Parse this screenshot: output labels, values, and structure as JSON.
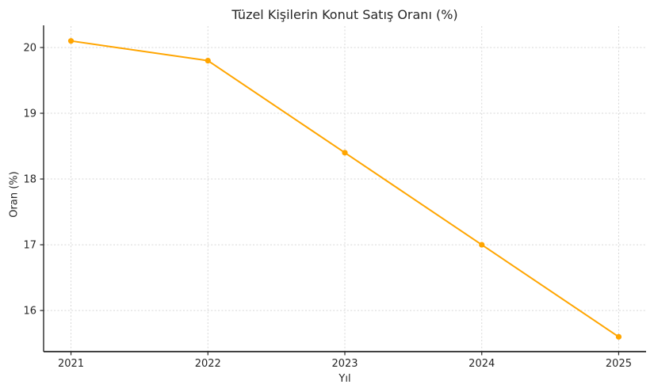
{
  "chart_data": {
    "type": "line",
    "title": "Tüzel Kişilerin Konut Satış Oranı (%)",
    "xlabel": "Yıl",
    "ylabel": "Oran (%)",
    "x": [
      2021,
      2022,
      2023,
      2024,
      2025
    ],
    "series": [
      {
        "name": "Oran",
        "values": [
          20.1,
          19.8,
          18.4,
          17.0,
          15.6
        ]
      }
    ],
    "xticks": [
      2021,
      2022,
      2023,
      2024,
      2025
    ],
    "yticks": [
      16,
      17,
      18,
      19,
      20
    ],
    "xlim": [
      2020.8,
      2025.2
    ],
    "ylim": [
      15.375,
      20.325
    ],
    "grid": true,
    "legend": "none",
    "line_color": "#FFA500",
    "marker": "circle",
    "grid_color": "#d7d7d7",
    "spine_color": "#262626",
    "tick_color": "#262626",
    "text_color": "#262626",
    "background": "#ffffff"
  }
}
